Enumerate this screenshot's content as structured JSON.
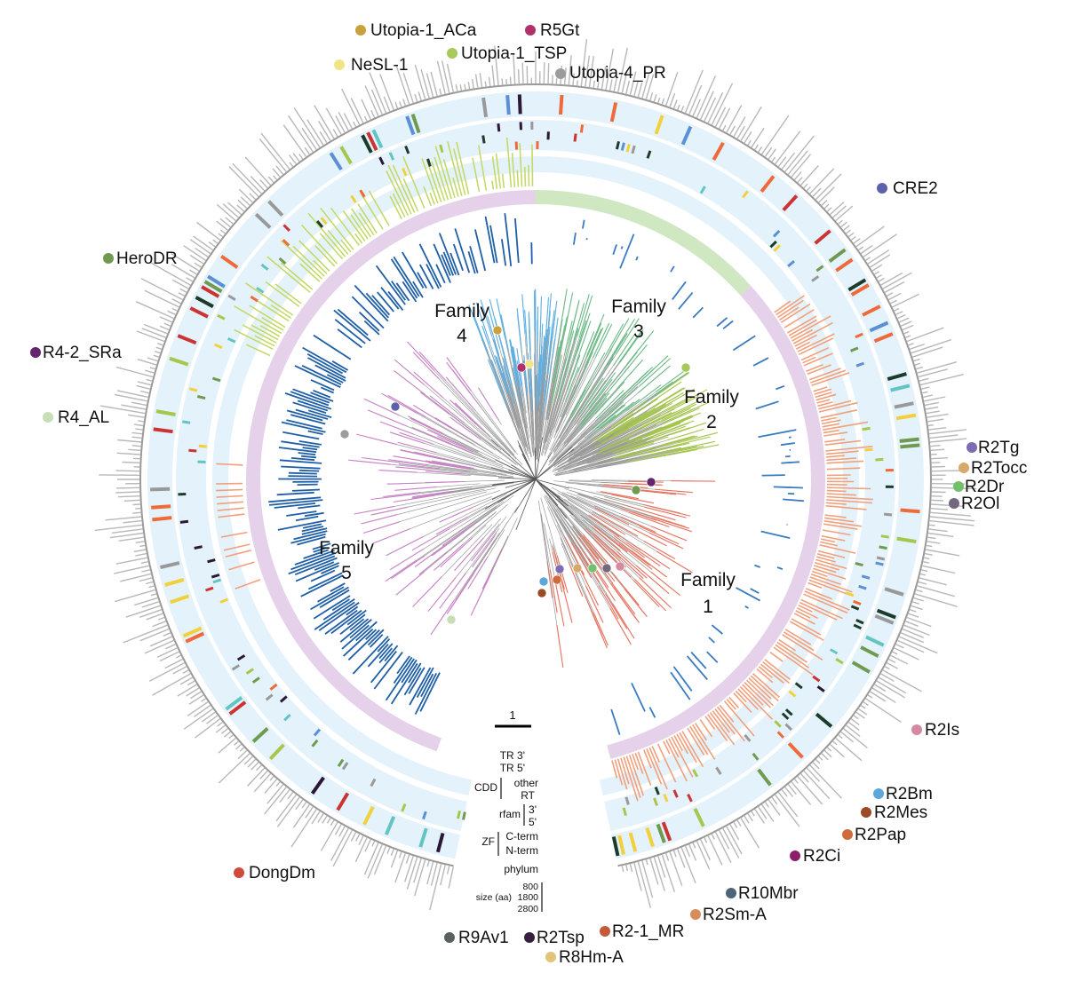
{
  "families": [
    {
      "line1": "Family",
      "line2": "4"
    },
    {
      "line1": "Family",
      "line2": "3"
    },
    {
      "line1": "Family",
      "line2": "2"
    },
    {
      "line1": "Family",
      "line2": "5"
    },
    {
      "line1": "Family",
      "line2": "1"
    }
  ],
  "colors": {
    "fam1": "#e8735f",
    "fam2": "#a6c64d",
    "fam3": "#6dbb88",
    "fam4": "#5fb0e3",
    "fam5": "#c883c6",
    "rfam_left": "#c5d96a",
    "rfam_right": "#f2a07c",
    "cdd_rt": "#1f5fa8",
    "ring_bg": "#e4f2fb",
    "ring_purple": "#e5d1ea",
    "ring_green": "#cfe8c1",
    "size_bar": "#b8b8b8",
    "zf_red": "#cc3333",
    "phylum_dark": "#2c1737"
  },
  "elements": [
    {
      "name": "Utopia-1_ACa",
      "color": "#c9a13d"
    },
    {
      "name": "R5Gt",
      "color": "#b0306a"
    },
    {
      "name": "NeSL-1",
      "color": "#f1e487"
    },
    {
      "name": "Utopia-1_TSP",
      "color": "#a6c95a"
    },
    {
      "name": "Utopia-4_PR",
      "color": "#9c9c9c"
    },
    {
      "name": "CRE2",
      "color": "#5b62ab"
    },
    {
      "name": "HeroDR",
      "color": "#6f9a4f"
    },
    {
      "name": "R4-2_SRa",
      "color": "#64246e"
    },
    {
      "name": "R4_AL",
      "color": "#c7deb6"
    },
    {
      "name": "R2Tg",
      "color": "#7d6bb3"
    },
    {
      "name": "R2Tocc",
      "color": "#d6a869"
    },
    {
      "name": "R2Dr",
      "color": "#73c06b"
    },
    {
      "name": "R2Ol",
      "color": "#73687e"
    },
    {
      "name": "R2Is",
      "color": "#d58aa1"
    },
    {
      "name": "R2Bm",
      "color": "#5fa7d9"
    },
    {
      "name": "R2Mes",
      "color": "#9a4a27"
    },
    {
      "name": "R2Pap",
      "color": "#d06a3a"
    },
    {
      "name": "R2Ci",
      "color": "#8b1f6b"
    },
    {
      "name": "R10Mbr",
      "color": "#4c6478"
    },
    {
      "name": "R2Sm-A",
      "color": "#d88b5b"
    },
    {
      "name": "R9Av1",
      "color": "#5a625d"
    },
    {
      "name": "R2Tsp",
      "color": "#3a1e40"
    },
    {
      "name": "R2-1_MR",
      "color": "#c45a38"
    },
    {
      "name": "R8Hm-A",
      "color": "#e3c57a"
    },
    {
      "name": "DongDm",
      "color": "#cf4a3a"
    }
  ],
  "scale_bar": {
    "label": "1"
  },
  "legend": {
    "tr3": "TR 3'",
    "tr5": "TR 5'",
    "cdd": "CDD",
    "cdd_other": "other",
    "cdd_rt": "RT",
    "rfam": "rfam",
    "rfam_3": "3'",
    "rfam_5": "5'",
    "zf": "ZF",
    "zf_c": "C-term",
    "zf_n": "N-term",
    "phylum": "phylum",
    "size": "size (aa)",
    "size_ticks": [
      "800",
      "1800",
      "2800"
    ]
  }
}
